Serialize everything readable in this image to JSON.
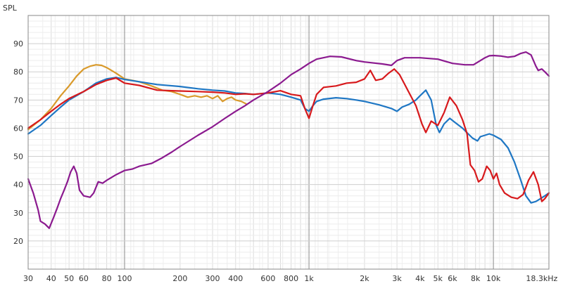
{
  "chart_data": {
    "type": "line",
    "title": "",
    "ylabel": "SPL",
    "xlabel": "",
    "x_scale": "log",
    "xlim": [
      30,
      20000
    ],
    "ylim": [
      10,
      100
    ],
    "grid": true,
    "x_ticks": [
      {
        "value": 30,
        "label": "30"
      },
      {
        "value": 40,
        "label": "40"
      },
      {
        "value": 50,
        "label": "50"
      },
      {
        "value": 60,
        "label": "60"
      },
      {
        "value": 80,
        "label": "80"
      },
      {
        "value": 100,
        "label": "100"
      },
      {
        "value": 200,
        "label": "200"
      },
      {
        "value": 300,
        "label": "300"
      },
      {
        "value": 400,
        "label": "400"
      },
      {
        "value": 600,
        "label": "600"
      },
      {
        "value": 800,
        "label": "800"
      },
      {
        "value": 1000,
        "label": "1k"
      },
      {
        "value": 2000,
        "label": "2k"
      },
      {
        "value": 3000,
        "label": "3k"
      },
      {
        "value": 4000,
        "label": "4k"
      },
      {
        "value": 5000,
        "label": "5k"
      },
      {
        "value": 6000,
        "label": "6k"
      },
      {
        "value": 8000,
        "label": "8k"
      },
      {
        "value": 10000,
        "label": "10k"
      },
      {
        "value": 18300,
        "label": "18.3kHz"
      }
    ],
    "y_ticks": [
      {
        "value": 20,
        "label": "20"
      },
      {
        "value": 30,
        "label": "30"
      },
      {
        "value": 40,
        "label": "40"
      },
      {
        "value": 50,
        "label": "50"
      },
      {
        "value": 60,
        "label": "60"
      },
      {
        "value": 70,
        "label": "70"
      },
      {
        "value": 80,
        "label": "80"
      },
      {
        "value": 90,
        "label": "90"
      }
    ],
    "series": [
      {
        "color": "#d99a2b",
        "points": [
          [
            30,
            59.5
          ],
          [
            35,
            63
          ],
          [
            40,
            67
          ],
          [
            45,
            71.5
          ],
          [
            50,
            75
          ],
          [
            55,
            78.5
          ],
          [
            60,
            81
          ],
          [
            65,
            82
          ],
          [
            70,
            82.5
          ],
          [
            75,
            82.3
          ],
          [
            80,
            81.5
          ],
          [
            90,
            79.5
          ],
          [
            100,
            77.5
          ],
          [
            120,
            76.5
          ],
          [
            140,
            75
          ],
          [
            160,
            73.5
          ],
          [
            180,
            73
          ],
          [
            200,
            72
          ],
          [
            220,
            71
          ],
          [
            240,
            71.5
          ],
          [
            260,
            71
          ],
          [
            280,
            71.5
          ],
          [
            300,
            70.5
          ],
          [
            320,
            71.5
          ],
          [
            340,
            69.5
          ],
          [
            360,
            70.5
          ],
          [
            380,
            71
          ],
          [
            400,
            70
          ],
          [
            430,
            69.5
          ],
          [
            460,
            68.5
          ]
        ]
      },
      {
        "color": "#1f77c4",
        "points": [
          [
            30,
            58
          ],
          [
            35,
            61
          ],
          [
            40,
            64.5
          ],
          [
            45,
            67.5
          ],
          [
            50,
            70
          ],
          [
            60,
            73
          ],
          [
            70,
            76
          ],
          [
            80,
            77.5
          ],
          [
            90,
            78
          ],
          [
            100,
            77.3
          ],
          [
            120,
            76.5
          ],
          [
            150,
            75.5
          ],
          [
            200,
            74.8
          ],
          [
            250,
            74
          ],
          [
            300,
            73.5
          ],
          [
            350,
            73.2
          ],
          [
            400,
            72.5
          ],
          [
            450,
            72.3
          ],
          [
            500,
            72
          ],
          [
            600,
            72.5
          ],
          [
            700,
            72
          ],
          [
            800,
            71
          ],
          [
            900,
            70
          ],
          [
            950,
            67
          ],
          [
            1000,
            66
          ],
          [
            1050,
            68
          ],
          [
            1100,
            69.5
          ],
          [
            1200,
            70.3
          ],
          [
            1400,
            70.8
          ],
          [
            1600,
            70.5
          ],
          [
            1800,
            70
          ],
          [
            2000,
            69.5
          ],
          [
            2400,
            68.3
          ],
          [
            2800,
            67
          ],
          [
            3000,
            66
          ],
          [
            3200,
            67.5
          ],
          [
            3500,
            68.5
          ],
          [
            3800,
            70
          ],
          [
            4000,
            71.5
          ],
          [
            4300,
            73.5
          ],
          [
            4600,
            70
          ],
          [
            4900,
            61
          ],
          [
            5100,
            58.5
          ],
          [
            5400,
            61.5
          ],
          [
            5800,
            63.5
          ],
          [
            6200,
            62
          ],
          [
            6800,
            60
          ],
          [
            7300,
            58
          ],
          [
            7700,
            56.5
          ],
          [
            8200,
            55.5
          ],
          [
            8500,
            57
          ],
          [
            9000,
            57.5
          ],
          [
            9500,
            58
          ],
          [
            10000,
            57.5
          ],
          [
            11000,
            56
          ],
          [
            12000,
            53
          ],
          [
            13000,
            48
          ],
          [
            14000,
            42
          ],
          [
            15000,
            36
          ],
          [
            16000,
            33.5
          ],
          [
            17000,
            34
          ],
          [
            18000,
            35
          ],
          [
            19000,
            36
          ],
          [
            20000,
            37
          ]
        ]
      },
      {
        "color": "#d7191c",
        "points": [
          [
            30,
            60
          ],
          [
            35,
            63
          ],
          [
            40,
            66
          ],
          [
            45,
            68.5
          ],
          [
            50,
            70.5
          ],
          [
            60,
            73
          ],
          [
            70,
            75.5
          ],
          [
            80,
            77
          ],
          [
            90,
            77.8
          ],
          [
            100,
            76
          ],
          [
            120,
            75.2
          ],
          [
            150,
            73.5
          ],
          [
            200,
            73.2
          ],
          [
            250,
            73
          ],
          [
            300,
            72.8
          ],
          [
            350,
            72.5
          ],
          [
            400,
            72
          ],
          [
            450,
            72.2
          ],
          [
            500,
            72
          ],
          [
            600,
            72.5
          ],
          [
            700,
            73.3
          ],
          [
            800,
            72
          ],
          [
            900,
            71.5
          ],
          [
            950,
            67
          ],
          [
            1000,
            63.5
          ],
          [
            1050,
            68
          ],
          [
            1100,
            72
          ],
          [
            1200,
            74.5
          ],
          [
            1400,
            75
          ],
          [
            1600,
            76
          ],
          [
            1800,
            76.3
          ],
          [
            2000,
            77.5
          ],
          [
            2150,
            80.5
          ],
          [
            2300,
            77
          ],
          [
            2500,
            77.5
          ],
          [
            2700,
            79.5
          ],
          [
            2900,
            81
          ],
          [
            3100,
            79
          ],
          [
            3400,
            74
          ],
          [
            3800,
            68
          ],
          [
            4100,
            61.5
          ],
          [
            4300,
            58.5
          ],
          [
            4600,
            62.5
          ],
          [
            5000,
            61
          ],
          [
            5400,
            65.5
          ],
          [
            5800,
            71
          ],
          [
            6300,
            68
          ],
          [
            6800,
            63
          ],
          [
            7200,
            58
          ],
          [
            7500,
            47
          ],
          [
            7900,
            45
          ],
          [
            8300,
            41
          ],
          [
            8700,
            42
          ],
          [
            9200,
            46.5
          ],
          [
            9600,
            45
          ],
          [
            10000,
            42
          ],
          [
            10400,
            44
          ],
          [
            10800,
            40
          ],
          [
            11500,
            37
          ],
          [
            12500,
            35.5
          ],
          [
            13500,
            35
          ],
          [
            14500,
            36.5
          ],
          [
            15500,
            41.5
          ],
          [
            16500,
            44.5
          ],
          [
            17500,
            40
          ],
          [
            18300,
            34
          ],
          [
            19000,
            35
          ],
          [
            20000,
            37
          ]
        ]
      },
      {
        "color": "#8b1a8f",
        "points": [
          [
            30,
            42
          ],
          [
            32,
            37
          ],
          [
            34,
            31
          ],
          [
            35,
            27
          ],
          [
            37,
            26
          ],
          [
            39,
            24.5
          ],
          [
            41,
            28
          ],
          [
            43,
            31.5
          ],
          [
            45,
            35
          ],
          [
            47,
            38
          ],
          [
            49,
            41
          ],
          [
            51,
            44.5
          ],
          [
            53,
            46.5
          ],
          [
            55,
            44
          ],
          [
            57,
            38
          ],
          [
            60,
            36
          ],
          [
            65,
            35.5
          ],
          [
            68,
            37
          ],
          [
            72,
            41
          ],
          [
            76,
            40.5
          ],
          [
            80,
            41.5
          ],
          [
            90,
            43.5
          ],
          [
            100,
            45
          ],
          [
            110,
            45.5
          ],
          [
            120,
            46.5
          ],
          [
            140,
            47.5
          ],
          [
            160,
            49.5
          ],
          [
            180,
            51.5
          ],
          [
            200,
            53.5
          ],
          [
            250,
            57.5
          ],
          [
            300,
            60.5
          ],
          [
            350,
            63.5
          ],
          [
            400,
            66
          ],
          [
            450,
            68
          ],
          [
            500,
            70
          ],
          [
            600,
            73
          ],
          [
            700,
            76
          ],
          [
            800,
            79
          ],
          [
            900,
            81
          ],
          [
            1000,
            83
          ],
          [
            1100,
            84.5
          ],
          [
            1300,
            85.5
          ],
          [
            1500,
            85.3
          ],
          [
            1800,
            84
          ],
          [
            2000,
            83.5
          ],
          [
            2500,
            82.8
          ],
          [
            2800,
            82.3
          ],
          [
            3000,
            84
          ],
          [
            3300,
            85
          ],
          [
            4000,
            85
          ],
          [
            5000,
            84.5
          ],
          [
            6000,
            83
          ],
          [
            7000,
            82.5
          ],
          [
            7800,
            82.5
          ],
          [
            8500,
            84
          ],
          [
            9000,
            85
          ],
          [
            9500,
            85.7
          ],
          [
            10000,
            85.8
          ],
          [
            11000,
            85.6
          ],
          [
            12000,
            85.2
          ],
          [
            13000,
            85.5
          ],
          [
            14000,
            86.5
          ],
          [
            15000,
            87
          ],
          [
            16000,
            86
          ],
          [
            17000,
            82
          ],
          [
            17500,
            80.5
          ],
          [
            18300,
            81
          ],
          [
            19000,
            80
          ],
          [
            20000,
            78.5
          ]
        ]
      }
    ]
  }
}
